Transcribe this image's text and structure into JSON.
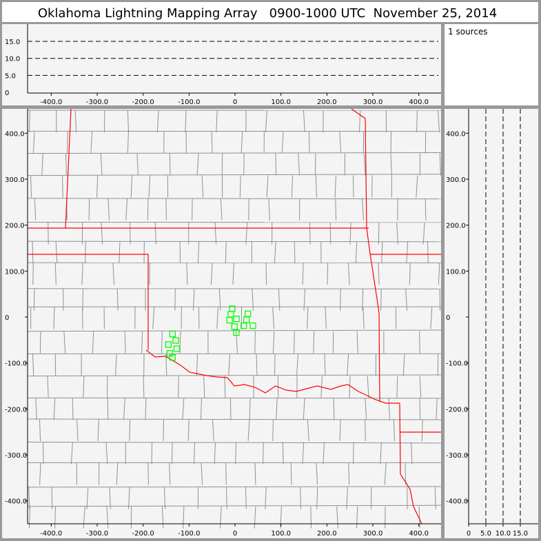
{
  "title": "Oklahoma Lightning Mapping Array   0900-1000 UTC  November 25, 2014",
  "sources_label": "1 sources",
  "colors": {
    "state_border": "#ff0000",
    "county_border": "#909090",
    "station": "#00ff00",
    "panel": "#f4f4f4",
    "frame": "#999999"
  },
  "chart_data": [
    {
      "panel": "altitude-vs-east-west",
      "type": "scatter",
      "xlim": [
        -450,
        450
      ],
      "ylim": [
        0,
        20
      ],
      "x_ticks": [
        "-400.0",
        "-300.0",
        "-200.0",
        "-100.0",
        "0",
        "100.0",
        "200.0",
        "300.0",
        "400.0"
      ],
      "y_ticks": [
        "0",
        "5.0",
        "10.0",
        "15.0"
      ],
      "dashed_grid_y": [
        5,
        10,
        15
      ]
    },
    {
      "panel": "plan-view-map",
      "type": "scatter",
      "xlim": [
        -450,
        450
      ],
      "ylim": [
        -450,
        450
      ],
      "x_ticks": [
        "-400.0",
        "-300.0",
        "-200.0",
        "-100.0",
        "0",
        "100.0",
        "200.0",
        "300.0",
        "400.0"
      ],
      "y_ticks": [
        "400.0",
        "300.0",
        "200.0",
        "100.0",
        "0",
        "-100.0",
        "-200.0",
        "-300.0",
        "-400.0"
      ],
      "stations": [
        {
          "x": -6,
          "y": 18
        },
        {
          "x": -9,
          "y": 6
        },
        {
          "x": 28,
          "y": 7
        },
        {
          "x": -12,
          "y": -7
        },
        {
          "x": 3,
          "y": -4
        },
        {
          "x": 25,
          "y": -6
        },
        {
          "x": -1,
          "y": -21
        },
        {
          "x": 19,
          "y": -19
        },
        {
          "x": 39,
          "y": -19
        },
        {
          "x": 3,
          "y": -34
        },
        {
          "x": -136,
          "y": -37
        },
        {
          "x": -129,
          "y": -51
        },
        {
          "x": -145,
          "y": -60
        },
        {
          "x": -127,
          "y": -69
        },
        {
          "x": -142,
          "y": -79
        },
        {
          "x": -136,
          "y": -88
        }
      ]
    },
    {
      "panel": "north-south-vs-altitude",
      "type": "scatter",
      "xlim": [
        0,
        20
      ],
      "ylim": [
        -450,
        450
      ],
      "x_ticks": [
        "0",
        "5.0",
        "10.0",
        "15.0"
      ],
      "y_ticks": [
        "400.0",
        "300.0",
        "200.0",
        "100.0",
        "0",
        "-100.0",
        "-200.0",
        "-300.0",
        "-400.0"
      ],
      "dashed_grid_x": [
        5,
        10,
        15
      ]
    }
  ]
}
